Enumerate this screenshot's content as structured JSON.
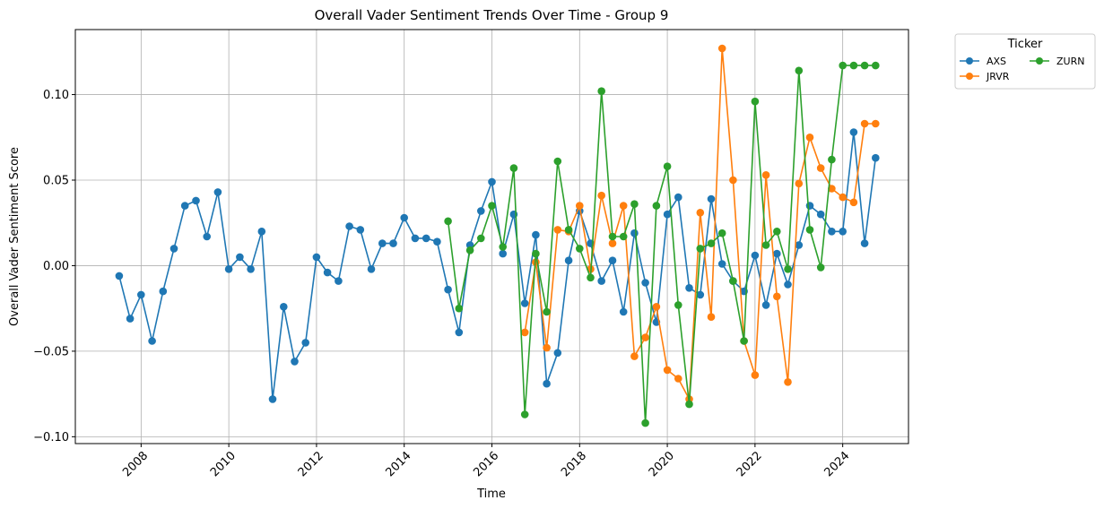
{
  "chart_data": {
    "type": "line",
    "title": "Overall Vader Sentiment Trends Over Time - Group 9",
    "xlabel": "Time",
    "ylabel": "Overall Vader Sentiment Score",
    "xlim": [
      2006.5,
      2025.5
    ],
    "ylim": [
      -0.104,
      0.138
    ],
    "x_ticks": [
      2008,
      2010,
      2012,
      2014,
      2016,
      2018,
      2020,
      2022,
      2024
    ],
    "y_ticks": [
      -0.1,
      -0.05,
      0.0,
      0.05,
      0.1
    ],
    "y_tick_labels": [
      "−0.10",
      "−0.05",
      "0.00",
      "0.05",
      "0.10"
    ],
    "grid": true,
    "legend": {
      "title": "Ticker",
      "placement": "outside-top-right",
      "columns": 2
    },
    "series": [
      {
        "name": "AXS",
        "color": "#1f77b4",
        "x": [
          2007.5,
          2007.75,
          2008.0,
          2008.25,
          2008.5,
          2008.75,
          2009.0,
          2009.25,
          2009.5,
          2009.75,
          2010.0,
          2010.25,
          2010.5,
          2010.75,
          2011.0,
          2011.25,
          2011.5,
          2011.75,
          2012.0,
          2012.25,
          2012.5,
          2012.75,
          2013.0,
          2013.25,
          2013.5,
          2013.75,
          2014.0,
          2014.25,
          2014.5,
          2014.75,
          2015.0,
          2015.25,
          2015.5,
          2015.75,
          2016.0,
          2016.25,
          2016.5,
          2016.75,
          2017.0,
          2017.25,
          2017.5,
          2017.75,
          2018.0,
          2018.25,
          2018.5,
          2018.75,
          2019.0,
          2019.25,
          2019.5,
          2019.75,
          2020.0,
          2020.25,
          2020.5,
          2020.75,
          2021.0,
          2021.25,
          2021.5,
          2021.75,
          2022.0,
          2022.25,
          2022.5,
          2022.75,
          2023.0,
          2023.25,
          2023.5,
          2023.75,
          2024.0,
          2024.25,
          2024.5,
          2024.75
        ],
        "values": [
          -0.006,
          -0.031,
          -0.017,
          -0.044,
          -0.015,
          0.01,
          0.035,
          0.038,
          0.017,
          0.043,
          -0.002,
          0.005,
          -0.002,
          0.02,
          -0.078,
          -0.024,
          -0.056,
          -0.045,
          0.005,
          -0.004,
          -0.009,
          0.023,
          0.021,
          -0.002,
          0.013,
          0.013,
          0.028,
          0.016,
          0.016,
          0.014,
          -0.014,
          -0.039,
          0.012,
          0.032,
          0.049,
          0.007,
          0.03,
          -0.022,
          0.018,
          -0.069,
          -0.051,
          0.003,
          0.032,
          0.013,
          -0.009,
          0.003,
          -0.027,
          0.019,
          -0.01,
          -0.033,
          0.03,
          0.04,
          -0.013,
          -0.017,
          0.039,
          0.001,
          -0.009,
          -0.015,
          0.006,
          -0.023,
          0.007,
          -0.011,
          0.012,
          0.035,
          0.03,
          0.02,
          0.02,
          0.078,
          0.013,
          0.063
        ]
      },
      {
        "name": "JRVR",
        "color": "#ff7f0e",
        "x": [
          2016.75,
          2017.0,
          2017.25,
          2017.5,
          2017.75,
          2018.0,
          2018.25,
          2018.5,
          2018.75,
          2019.0,
          2019.25,
          2019.5,
          2019.75,
          2020.0,
          2020.25,
          2020.5,
          2020.75,
          2021.0,
          2021.25,
          2021.5,
          2021.75,
          2022.0,
          2022.25,
          2022.5,
          2022.75,
          2023.0,
          2023.25,
          2023.5,
          2023.75,
          2024.0,
          2024.25,
          2024.5,
          2024.75
        ],
        "values": [
          -0.039,
          0.002,
          -0.048,
          0.021,
          0.02,
          0.035,
          -0.002,
          0.041,
          0.013,
          0.035,
          -0.053,
          -0.042,
          -0.024,
          -0.061,
          -0.066,
          -0.078,
          0.031,
          -0.03,
          0.127,
          0.05,
          -0.044,
          -0.064,
          0.053,
          -0.018,
          -0.068,
          0.048,
          0.075,
          0.057,
          0.045,
          0.04,
          0.037,
          0.083,
          0.083
        ]
      },
      {
        "name": "ZURN",
        "color": "#2ca02c",
        "x": [
          2015.0,
          2015.25,
          2015.5,
          2015.75,
          2016.0,
          2016.25,
          2016.5,
          2016.75,
          2017.0,
          2017.25,
          2017.5,
          2017.75,
          2018.0,
          2018.25,
          2018.5,
          2018.75,
          2019.0,
          2019.25,
          2019.5,
          2019.75,
          2020.0,
          2020.25,
          2020.5,
          2020.75,
          2021.0,
          2021.25,
          2021.5,
          2021.75,
          2022.0,
          2022.25,
          2022.5,
          2022.75,
          2023.0,
          2023.25,
          2023.5,
          2023.75,
          2024.0,
          2024.25,
          2024.5,
          2024.75
        ],
        "values": [
          0.026,
          -0.025,
          0.009,
          0.016,
          0.035,
          0.011,
          0.057,
          -0.087,
          0.007,
          -0.027,
          0.061,
          0.021,
          0.01,
          -0.007,
          0.102,
          0.017,
          0.017,
          0.036,
          -0.092,
          0.035,
          0.058,
          -0.023,
          -0.081,
          0.01,
          0.013,
          0.019,
          -0.009,
          -0.044,
          0.096,
          0.012,
          0.02,
          -0.002,
          0.114,
          0.021,
          -0.001,
          0.062,
          0.117,
          0.117,
          0.117,
          0.117
        ]
      }
    ]
  }
}
